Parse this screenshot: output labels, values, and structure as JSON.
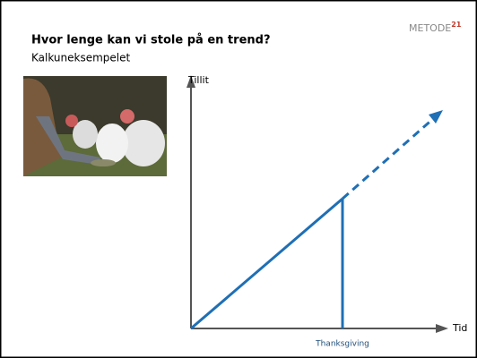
{
  "header": {
    "title": "Hvor lenge kan vi stole på en trend?",
    "subtitle": "Kalkuneksempelet"
  },
  "logo": {
    "name": "METODE",
    "superscript": "21"
  },
  "diagram": {
    "y_axis_label": "Tillit",
    "x_axis_label": "Tid",
    "event_label": "Thanksgiving"
  }
}
